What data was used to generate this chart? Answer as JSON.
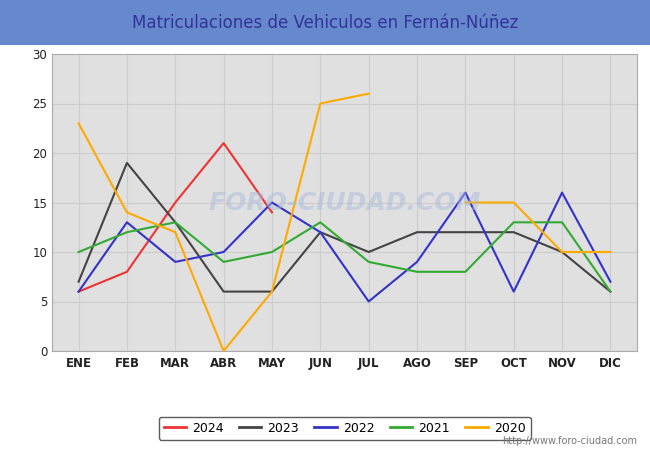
{
  "title": "Matriculaciones de Vehiculos en Fernán-Núñez",
  "title_color": "#333399",
  "title_bg_color": "#6688cc",
  "months": [
    "ENE",
    "FEB",
    "MAR",
    "ABR",
    "MAY",
    "JUN",
    "JUL",
    "AGO",
    "SEP",
    "OCT",
    "NOV",
    "DIC"
  ],
  "series": {
    "2024": {
      "color": "#ee3333",
      "data": [
        6,
        8,
        15,
        21,
        14,
        null,
        null,
        null,
        null,
        null,
        null,
        null
      ]
    },
    "2023": {
      "color": "#444444",
      "data": [
        7,
        19,
        13,
        6,
        6,
        12,
        10,
        12,
        12,
        12,
        10,
        6
      ]
    },
    "2022": {
      "color": "#3333cc",
      "data": [
        6,
        13,
        9,
        10,
        15,
        12,
        5,
        9,
        16,
        6,
        16,
        7
      ]
    },
    "2021": {
      "color": "#33aa33",
      "data": [
        10,
        12,
        13,
        9,
        10,
        13,
        9,
        8,
        8,
        13,
        13,
        6
      ]
    },
    "2020": {
      "color": "#ffaa00",
      "data": [
        23,
        14,
        12,
        0,
        6,
        25,
        26,
        null,
        15,
        15,
        10,
        10
      ]
    }
  },
  "ylim": [
    0,
    30
  ],
  "yticks": [
    0,
    5,
    10,
    15,
    20,
    25,
    30
  ],
  "grid_color": "#cccccc",
  "plot_bg": "#e0e0e0",
  "watermark": "FORO-CIUDAD.COM",
  "watermark_color": "#aabbdd",
  "url_text": "http://www.foro-ciudad.com",
  "legend_years": [
    "2024",
    "2023",
    "2022",
    "2021",
    "2020"
  ]
}
